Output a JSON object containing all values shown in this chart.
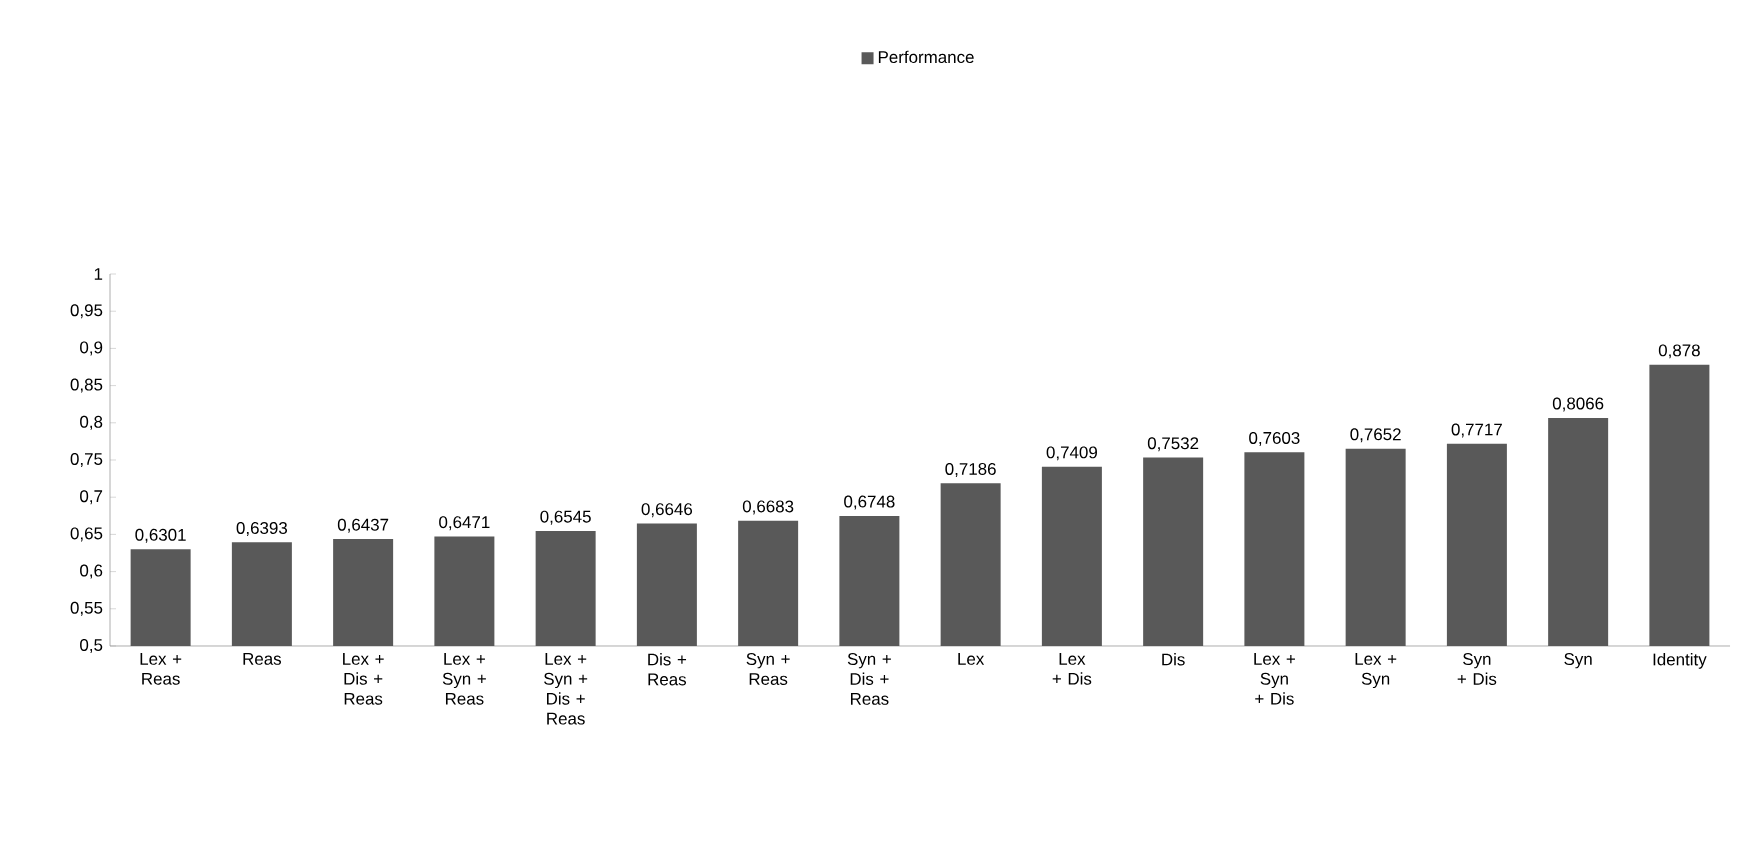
{
  "chart_data": {
    "type": "bar",
    "categories": [
      "Lex + Reas",
      "Reas",
      "Lex + Dis + Reas",
      "Lex + Syn + Reas",
      "Lex + Syn + Dis + Reas",
      "Dis + Reas",
      "Syn + Reas",
      "Syn + Dis + Reas",
      "Lex",
      "Lex + Dis",
      "Dis",
      "Lex + Syn + Dis",
      "Lex + Syn",
      "Syn + Dis",
      "Syn",
      "Identity"
    ],
    "series": [
      {
        "name": "Performance",
        "color": "#595959",
        "values": [
          0.6301,
          0.6393,
          0.6437,
          0.6471,
          0.6545,
          0.6646,
          0.6683,
          0.6748,
          0.7186,
          0.7409,
          0.7532,
          0.7603,
          0.7652,
          0.7717,
          0.8066,
          0.878
        ],
        "value_labels": [
          "0,6301",
          "0,6393",
          "0,6437",
          "0,6471",
          "0,6545",
          "0,6646",
          "0,6683",
          "0,6748",
          "0,7186",
          "0,7409",
          "0,7532",
          "0,7603",
          "0,7652",
          "0,7717",
          "0,8066",
          "0,878"
        ]
      }
    ],
    "ylim": [
      0.5,
      1
    ],
    "yticks": [
      {
        "value": 0.5,
        "label": "0,5"
      },
      {
        "value": 0.55,
        "label": "0,55"
      },
      {
        "value": 0.6,
        "label": "0,6"
      },
      {
        "value": 0.65,
        "label": "0,65"
      },
      {
        "value": 0.7,
        "label": "0,7"
      },
      {
        "value": 0.75,
        "label": "0,75"
      },
      {
        "value": 0.8,
        "label": "0,8"
      },
      {
        "value": 0.85,
        "label": "0,85"
      },
      {
        "value": 0.9,
        "label": "0,9"
      },
      {
        "value": 0.95,
        "label": "0,95"
      },
      {
        "value": 1,
        "label": "1"
      }
    ],
    "legend": "top"
  }
}
